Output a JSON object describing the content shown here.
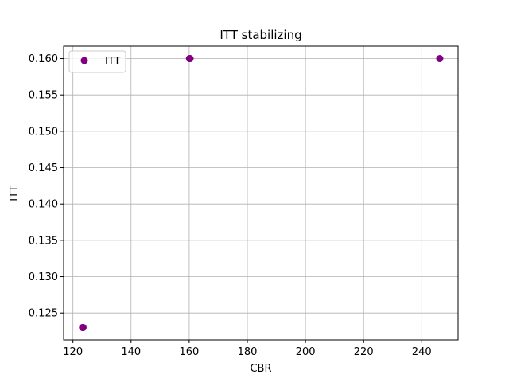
{
  "chart_data": {
    "type": "scatter",
    "title": "ITT stabilizing",
    "xlabel": "CBR",
    "ylabel": "ITT",
    "xlim": [
      116.8,
      252.5
    ],
    "ylim": [
      0.1213,
      0.1617
    ],
    "xticks": [
      120,
      140,
      160,
      180,
      200,
      220,
      240
    ],
    "yticks": [
      0.125,
      0.13,
      0.135,
      0.14,
      0.145,
      0.15,
      0.155,
      0.16
    ],
    "ytick_format_decimals": 3,
    "grid": true,
    "legend_position": "upper-left",
    "series": [
      {
        "name": "ITT",
        "color": "#800080",
        "marker": "circle",
        "points": [
          {
            "x": 123.3,
            "y": 0.123
          },
          {
            "x": 123.5,
            "y": 0.123
          },
          {
            "x": 160.1,
            "y": 0.16
          },
          {
            "x": 160.3,
            "y": 0.16
          },
          {
            "x": 246.2,
            "y": 0.16
          }
        ]
      }
    ]
  }
}
